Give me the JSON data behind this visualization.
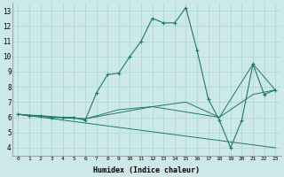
{
  "xlabel": "Humidex (Indice chaleur)",
  "background_color": "#cce8e8",
  "grid_color": "#aad4d4",
  "line_color": "#1a7a6e",
  "xlim": [
    -0.5,
    23.5
  ],
  "ylim": [
    3.5,
    13.5
  ],
  "xticks": [
    0,
    1,
    2,
    3,
    4,
    5,
    6,
    7,
    8,
    9,
    10,
    11,
    12,
    13,
    14,
    15,
    16,
    17,
    18,
    19,
    20,
    21,
    22,
    23
  ],
  "yticks": [
    4,
    5,
    6,
    7,
    8,
    9,
    10,
    11,
    12,
    13
  ],
  "series1": [
    [
      0,
      6.2
    ],
    [
      1,
      6.1
    ],
    [
      2,
      6.1
    ],
    [
      3,
      6.0
    ],
    [
      4,
      6.0
    ],
    [
      5,
      6.0
    ],
    [
      6,
      5.8
    ],
    [
      7,
      7.6
    ],
    [
      8,
      8.8
    ],
    [
      9,
      8.9
    ],
    [
      10,
      10.0
    ],
    [
      11,
      11.0
    ],
    [
      12,
      12.5
    ],
    [
      13,
      12.2
    ],
    [
      14,
      12.2
    ],
    [
      15,
      13.2
    ],
    [
      16,
      10.4
    ],
    [
      17,
      7.2
    ],
    [
      18,
      5.8
    ],
    [
      19,
      4.0
    ],
    [
      20,
      5.8
    ],
    [
      21,
      9.5
    ],
    [
      22,
      7.5
    ],
    [
      23,
      7.8
    ]
  ],
  "series2": [
    [
      0,
      6.2
    ],
    [
      3,
      6.0
    ],
    [
      6,
      5.9
    ],
    [
      9,
      6.5
    ],
    [
      12,
      6.7
    ],
    [
      15,
      7.0
    ],
    [
      18,
      6.0
    ],
    [
      21,
      7.5
    ],
    [
      23,
      7.8
    ]
  ],
  "series3": [
    [
      0,
      6.2
    ],
    [
      23,
      4.0
    ]
  ],
  "series4": [
    [
      0,
      6.2
    ],
    [
      6,
      5.9
    ],
    [
      12,
      6.7
    ],
    [
      18,
      6.0
    ],
    [
      21,
      9.5
    ],
    [
      23,
      7.8
    ]
  ]
}
